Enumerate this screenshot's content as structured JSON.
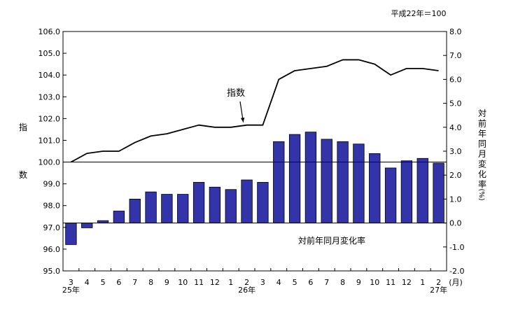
{
  "chart_data": {
    "type": "bar+line",
    "base_note": "平成22年＝100",
    "categories": [
      "3",
      "4",
      "5",
      "6",
      "7",
      "8",
      "9",
      "10",
      "11",
      "12",
      "1",
      "2",
      "3",
      "4",
      "5",
      "6",
      "7",
      "8",
      "9",
      "10",
      "11",
      "12",
      "1",
      "2"
    ],
    "year_labels": [
      {
        "label": "25年",
        "at_index": 0
      },
      {
        "label": "26年",
        "at_index": 11
      },
      {
        "label": "27年",
        "at_index": 23
      }
    ],
    "x_unit": "(月)",
    "left_axis": {
      "label": [
        "指",
        "数"
      ],
      "range": [
        95.0,
        106.0
      ],
      "ticks": [
        "95.0",
        "96.0",
        "97.0",
        "98.0",
        "99.0",
        "100.0",
        "101.0",
        "102.0",
        "103.0",
        "104.0",
        "105.0",
        "106.0"
      ]
    },
    "right_axis": {
      "label": [
        "対",
        "前",
        "年",
        "同",
        "月",
        "変",
        "化",
        "率",
        "(%)"
      ],
      "range": [
        -2.0,
        8.0
      ],
      "ticks": [
        "-2.0",
        "-1.0",
        "0.0",
        "1.0",
        "2.0",
        "3.0",
        "4.0",
        "5.0",
        "6.0",
        "7.0",
        "8.0"
      ]
    },
    "series": [
      {
        "name": "指数",
        "type": "line",
        "axis": "left",
        "values": [
          100.0,
          100.4,
          100.5,
          100.5,
          100.9,
          101.2,
          101.3,
          101.5,
          101.7,
          101.6,
          101.6,
          101.7,
          101.7,
          103.8,
          104.2,
          104.3,
          104.4,
          104.7,
          104.7,
          104.5,
          104.0,
          104.3,
          104.3,
          104.2
        ]
      },
      {
        "name": "対前年同月変化率",
        "type": "bar",
        "axis": "right",
        "values": [
          -0.9,
          -0.2,
          0.1,
          0.5,
          1.0,
          1.3,
          1.2,
          1.2,
          1.7,
          1.5,
          1.4,
          1.8,
          1.7,
          3.4,
          3.7,
          3.8,
          3.5,
          3.4,
          3.3,
          2.9,
          2.3,
          2.6,
          2.7,
          2.5
        ]
      }
    ],
    "annotations": [
      {
        "text": "指数",
        "target_series": "指数",
        "target_index": 11
      },
      {
        "text": "対前年同月変化率",
        "target_series": "対前年同月変化率"
      }
    ],
    "reference_line": {
      "axis": "left",
      "value": 100.0
    },
    "colors": {
      "bar_fill": "#3333aa",
      "bar_stroke": "#000000",
      "line": "#000000"
    },
    "grid": false,
    "legend": "none"
  }
}
